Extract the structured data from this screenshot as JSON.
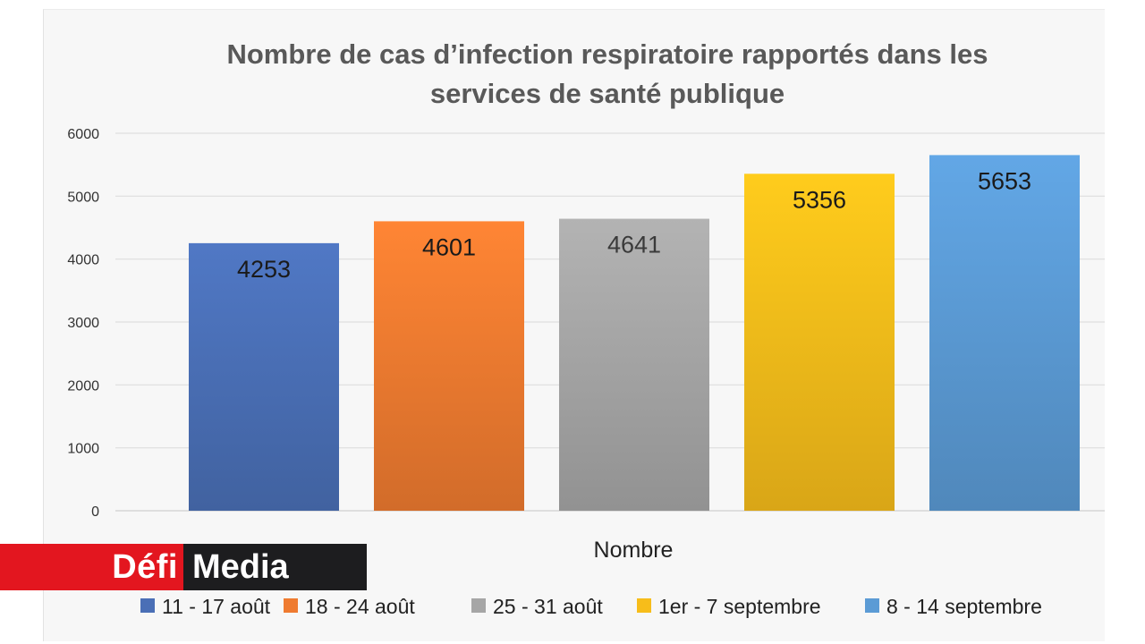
{
  "chart_data": {
    "type": "bar",
    "title_lines": [
      "Nombre de cas d’infection respiratoire rapportés dans les",
      "services de santé publique"
    ],
    "xlabel": "Nombre",
    "ylabel": "",
    "ylim": [
      0,
      6000
    ],
    "yticks": [
      "0",
      "1000",
      "2000",
      "3000",
      "4000",
      "5000",
      "6000"
    ],
    "grid": true,
    "legend_position": "bottom",
    "series": [
      {
        "name": "11 - 17 août",
        "value": 4253,
        "label": "4253",
        "color": "#4a6fb6"
      },
      {
        "name": "18 - 24 août",
        "value": 4601,
        "label": "4601",
        "color": "#ef7b30"
      },
      {
        "name": "25 - 31 août",
        "value": 4641,
        "label": "4641",
        "color": "#a6a6a6"
      },
      {
        "name": "1er - 7 septembre",
        "value": 5356,
        "label": "5356",
        "color": "#f7bd1a"
      },
      {
        "name": "8 - 14 septembre",
        "value": 5653,
        "label": "5653",
        "color": "#5b9bd5"
      }
    ]
  },
  "watermark": {
    "left_text": "Défi",
    "right_text": "Media",
    "left_color": "#e3161f",
    "right_color": "#1d1d1f"
  }
}
